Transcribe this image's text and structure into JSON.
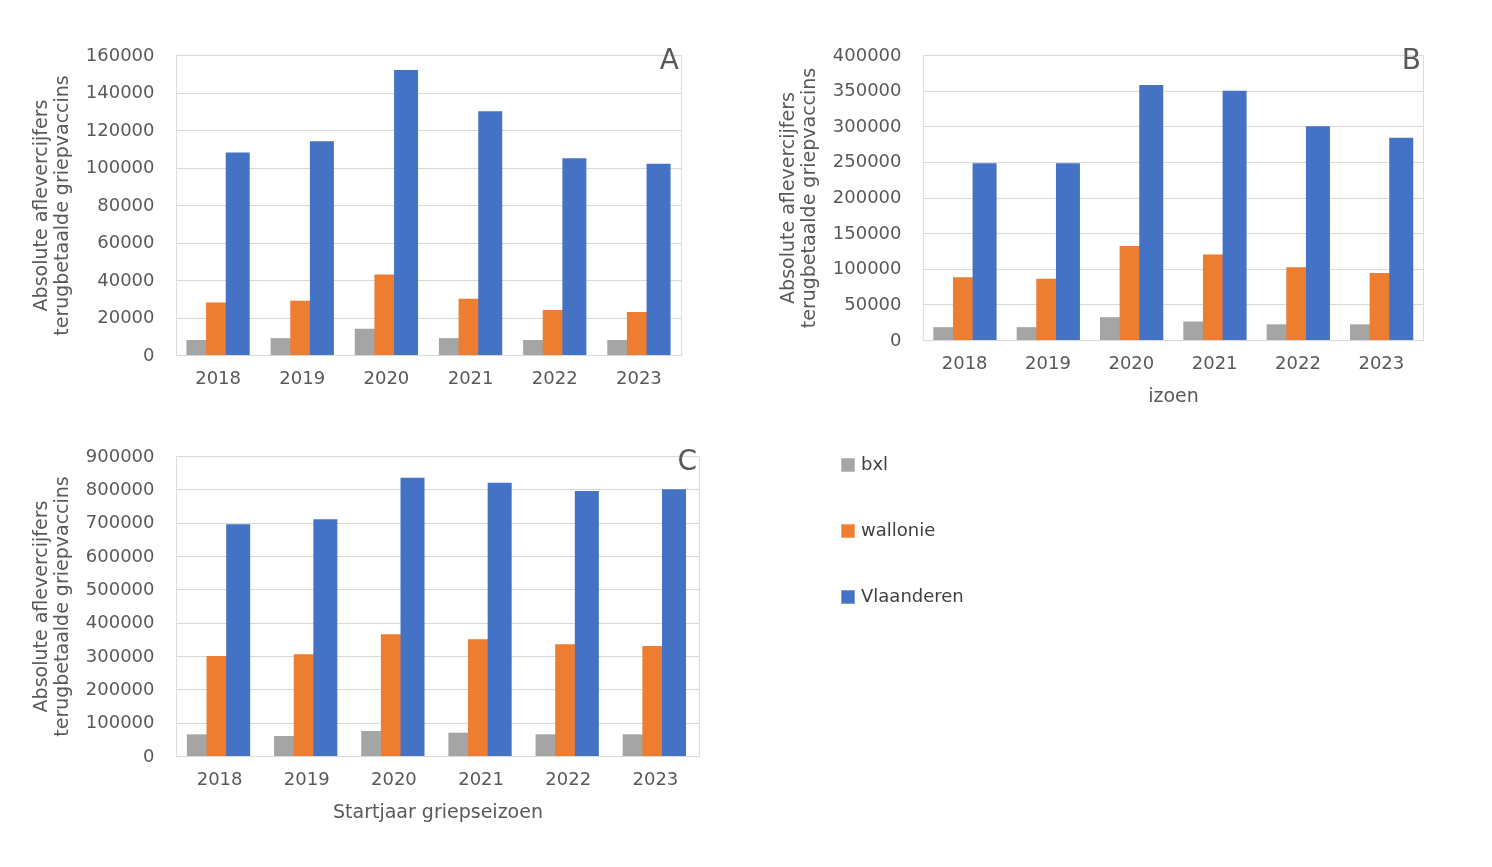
{
  "chart_data": [
    {
      "type": "bar",
      "ylabel": "Absolute aflevercijfers terugbetaalde griepvaccins",
      "categories": [
        "2018",
        "2019",
        "2020",
        "2021",
        "2022",
        "2023"
      ],
      "ylim": [
        0,
        160000
      ],
      "yticks": [
        0,
        20000,
        40000,
        60000,
        80000,
        100000,
        120000,
        140000,
        160000
      ],
      "grid": "y",
      "annotations": [
        "A"
      ],
      "series": [
        {
          "color": "#a5a5a5",
          "values": [
            8000,
            9000,
            14000,
            9000,
            8000,
            8000
          ]
        },
        {
          "color": "#ed7d31",
          "values": [
            28000,
            29000,
            43000,
            30000,
            24000,
            23000
          ]
        },
        {
          "color": "#4472c4",
          "values": [
            108000,
            114000,
            152000,
            130000,
            105000,
            102000
          ]
        }
      ]
    },
    {
      "type": "bar",
      "ylabel": "Absolute aflevercijfers terugbetaalde griepvaccins",
      "xlabel": "izoen",
      "categories": [
        "2018",
        "2019",
        "2020",
        "2021",
        "2022",
        "2023"
      ],
      "ylim": [
        0,
        400000
      ],
      "yticks": [
        0,
        50000,
        100000,
        150000,
        200000,
        250000,
        300000,
        350000,
        400000
      ],
      "grid": "y",
      "annotations": [
        "B"
      ],
      "series": [
        {
          "color": "#a5a5a5",
          "values": [
            18000,
            18000,
            32000,
            26000,
            22000,
            22000
          ]
        },
        {
          "color": "#ed7d31",
          "values": [
            88000,
            86000,
            132000,
            120000,
            102000,
            94000
          ]
        },
        {
          "color": "#4472c4",
          "values": [
            248000,
            248000,
            358000,
            350000,
            300000,
            284000
          ]
        }
      ]
    },
    {
      "type": "bar",
      "ylabel": "Absolute aflevercijfers terugbetaalde griepvaccins",
      "xlabel": "Startjaar griepseizoen",
      "categories": [
        "2018",
        "2019",
        "2020",
        "2021",
        "2022",
        "2023"
      ],
      "ylim": [
        0,
        900000
      ],
      "yticks": [
        0,
        100000,
        200000,
        300000,
        400000,
        500000,
        600000,
        700000,
        800000,
        900000
      ],
      "grid": "y",
      "legend": "right",
      "annotations": [
        "C"
      ],
      "series": [
        {
          "name": "bxl",
          "color": "#a5a5a5",
          "values": [
            65000,
            60000,
            75000,
            70000,
            65000,
            65000
          ]
        },
        {
          "name": "wallonie",
          "color": "#ed7d31",
          "values": [
            300000,
            305000,
            365000,
            350000,
            335000,
            330000
          ]
        },
        {
          "name": "Vlaanderen",
          "color": "#4472c4",
          "values": [
            695000,
            710000,
            835000,
            820000,
            795000,
            800000
          ]
        }
      ]
    }
  ]
}
